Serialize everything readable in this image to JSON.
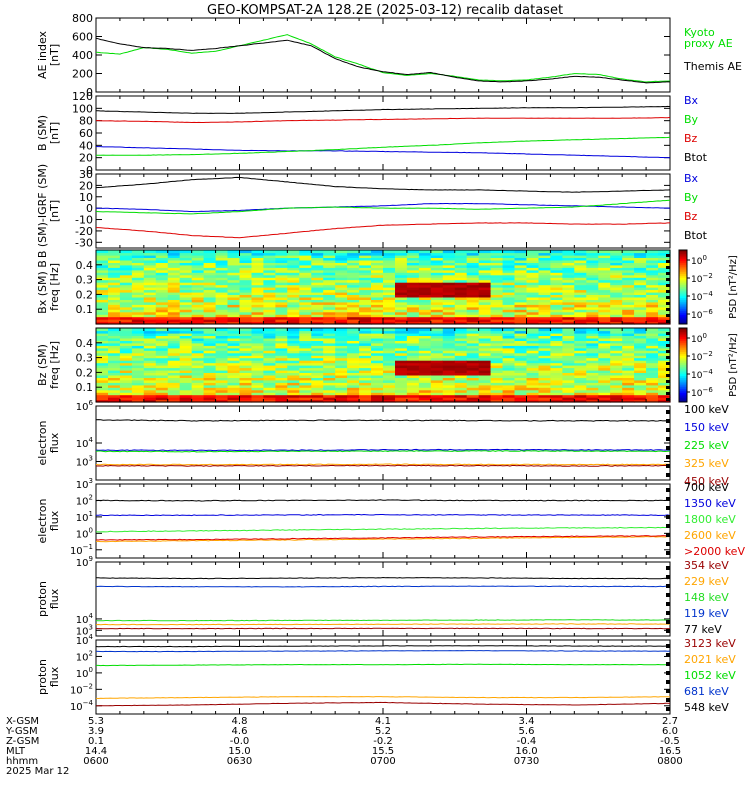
{
  "title": "GEO-KOMPSAT-2A 128.2E (2025-03-12) recalib dataset",
  "colors": {
    "black": "#000000",
    "blue": "#0000dd",
    "green": "#00dd00",
    "red": "#dd0000",
    "orange": "#ffa500",
    "darkred": "#990000",
    "brightgreen": "#33ee33",
    "limegreen": "#22dd22",
    "navy": "#0033cc"
  },
  "x_axis": {
    "time_range": [
      "0600",
      "0800"
    ],
    "ticks": [
      {
        "hhmm": "0600",
        "x_gsm": "5.3",
        "y_gsm": "3.9",
        "z_gsm": "0.1",
        "mlt": "14.4"
      },
      {
        "hhmm": "0630",
        "x_gsm": "4.8",
        "y_gsm": "4.6",
        "z_gsm": "-0.0",
        "mlt": "15.0"
      },
      {
        "hhmm": "0700",
        "x_gsm": "4.1",
        "y_gsm": "5.2",
        "z_gsm": "-0.2",
        "mlt": "15.5"
      },
      {
        "hhmm": "0730",
        "x_gsm": "3.4",
        "y_gsm": "5.6",
        "z_gsm": "-0.4",
        "mlt": "16.0"
      },
      {
        "hhmm": "0800",
        "x_gsm": "2.7",
        "y_gsm": "6.0",
        "z_gsm": "-0.5",
        "mlt": "16.5"
      }
    ],
    "row_labels": [
      "X-GSM",
      "Y-GSM",
      "Z-GSM",
      "MLT",
      "hhmm"
    ],
    "date_label": "2025 Mar 12"
  },
  "chart_data": [
    {
      "type": "line",
      "id": "ae",
      "ylabel": "AE index\n[nT]",
      "ylim": [
        0,
        800
      ],
      "yscale": "linear",
      "yticks": [
        0,
        200,
        400,
        600,
        800
      ],
      "x": [
        0,
        5,
        10,
        15,
        20,
        25,
        30,
        35,
        40,
        45,
        50,
        55,
        60,
        65,
        70,
        75,
        80,
        85,
        90,
        95,
        100,
        105,
        110,
        115,
        120
      ],
      "series": [
        {
          "name": "Kyoto\nproxy AE",
          "color": "green",
          "values": [
            430,
            410,
            480,
            460,
            420,
            440,
            500,
            560,
            620,
            520,
            380,
            300,
            210,
            180,
            200,
            170,
            130,
            120,
            130,
            160,
            200,
            190,
            140,
            110,
            120
          ]
        },
        {
          "name": "Themis AE",
          "color": "black",
          "values": [
            580,
            520,
            480,
            470,
            450,
            470,
            500,
            530,
            560,
            500,
            360,
            270,
            220,
            190,
            210,
            160,
            120,
            110,
            120,
            140,
            170,
            160,
            130,
            100,
            110
          ]
        }
      ]
    },
    {
      "type": "line",
      "id": "bsm",
      "ylabel": "B (SM)\n[nT]",
      "ylim": [
        0,
        120
      ],
      "yscale": "linear",
      "yticks": [
        0,
        20,
        40,
        60,
        80,
        100,
        120
      ],
      "x": [
        0,
        10,
        20,
        30,
        40,
        50,
        60,
        70,
        80,
        90,
        100,
        110,
        120
      ],
      "series": [
        {
          "name": "Bx",
          "color": "blue",
          "values": [
            38,
            36,
            34,
            32,
            31,
            31,
            30,
            29,
            28,
            26,
            24,
            22,
            20
          ]
        },
        {
          "name": "By",
          "color": "green",
          "values": [
            24,
            24,
            25,
            27,
            30,
            33,
            37,
            40,
            44,
            47,
            49,
            51,
            53
          ]
        },
        {
          "name": "Bz",
          "color": "red",
          "values": [
            80,
            79,
            77,
            78,
            80,
            81,
            82,
            83,
            84,
            84,
            84,
            84,
            85
          ]
        },
        {
          "name": "Btot",
          "color": "black",
          "values": [
            96,
            94,
            92,
            92,
            94,
            96,
            98,
            99,
            100,
            101,
            101,
            102,
            103
          ]
        }
      ]
    },
    {
      "type": "line",
      "id": "bigrf",
      "ylabel": "B (SM)-IGRF (SM)\n[nT]",
      "ylim": [
        -35,
        30
      ],
      "yscale": "linear",
      "yticks": [
        -30,
        -20,
        -10,
        0,
        10,
        20,
        30
      ],
      "x": [
        0,
        10,
        20,
        30,
        40,
        50,
        60,
        70,
        80,
        90,
        100,
        110,
        120
      ],
      "series": [
        {
          "name": "Bx",
          "color": "blue",
          "values": [
            0,
            -1,
            -3,
            -2,
            0,
            1,
            2,
            4,
            4,
            3,
            2,
            1,
            0
          ]
        },
        {
          "name": "By",
          "color": "green",
          "values": [
            -3,
            -4,
            -5,
            -3,
            0,
            1,
            0,
            0,
            -1,
            0,
            1,
            4,
            7
          ]
        },
        {
          "name": "Bz",
          "color": "red",
          "values": [
            -17,
            -20,
            -24,
            -26,
            -22,
            -18,
            -15,
            -14,
            -13,
            -13,
            -14,
            -14,
            -13
          ]
        },
        {
          "name": "Btot",
          "color": "black",
          "values": [
            18,
            21,
            25,
            27,
            23,
            19,
            17,
            16,
            16,
            15,
            14,
            15,
            16
          ]
        }
      ]
    },
    {
      "type": "heatmap",
      "id": "bx_spec",
      "ylabel": "Bx (SM) B\nfreq [Hz]",
      "ylim": [
        0,
        0.5
      ],
      "yticks": [
        0.1,
        0.2,
        0.3,
        0.4
      ],
      "colorbar_label": "PSD [nT²/Hz]",
      "colorbar_ticks": [
        {
          "b": "10",
          "e": "0"
        },
        {
          "b": "10",
          "e": "−2"
        },
        {
          "b": "10",
          "e": "−4"
        },
        {
          "b": "10",
          "e": "−6"
        }
      ]
    },
    {
      "type": "heatmap",
      "id": "bz_spec",
      "ylabel": "Bz (SM)\nfreq [Hz]",
      "ylim": [
        0,
        0.5
      ],
      "yticks": [
        0.1,
        0.2,
        0.3,
        0.4
      ],
      "colorbar_label": "PSD [nT²/Hz]",
      "colorbar_ticks": [
        {
          "b": "10",
          "e": "0"
        },
        {
          "b": "10",
          "e": "−2"
        },
        {
          "b": "10",
          "e": "−4"
        },
        {
          "b": "10",
          "e": "−6"
        }
      ]
    },
    {
      "type": "line",
      "id": "eflux_low",
      "ylabel": "electron\nflux",
      "yscale": "log",
      "ylim_log": [
        2,
        6
      ],
      "yticks": [
        {
          "b": "10",
          "e": "6"
        },
        {
          "b": "10",
          "e": "4"
        },
        {
          "b": "10",
          "e": "3"
        }
      ],
      "x": [
        0,
        20,
        40,
        60,
        80,
        100,
        120
      ],
      "series": [
        {
          "name": "100 keV",
          "color": "black",
          "values": [
            5.25,
            5.2,
            5.22,
            5.23,
            5.21,
            5.2,
            5.2
          ]
        },
        {
          "name": "150 keV",
          "color": "blue",
          "values": [
            3.62,
            3.6,
            3.61,
            3.63,
            3.64,
            3.63,
            3.62
          ]
        },
        {
          "name": "225 keV",
          "color": "green",
          "values": [
            3.55,
            3.53,
            3.55,
            3.56,
            3.57,
            3.56,
            3.55
          ]
        },
        {
          "name": "325 keV",
          "color": "orange",
          "values": [
            2.84,
            2.83,
            2.84,
            2.85,
            2.84,
            2.83,
            2.84
          ]
        },
        {
          "name": "450 keV",
          "color": "darkred",
          "values": [
            2.77,
            2.76,
            2.77,
            2.78,
            2.77,
            2.76,
            2.77
          ]
        }
      ]
    },
    {
      "type": "line",
      "id": "eflux_high",
      "ylabel": "electron\nflux",
      "yscale": "log",
      "ylim_log": [
        -1.5,
        3
      ],
      "yticks": [
        {
          "b": "10",
          "e": "3"
        },
        {
          "b": "10",
          "e": "2"
        },
        {
          "b": "10",
          "e": "1"
        },
        {
          "b": "10",
          "e": "0"
        },
        {
          "b": "10",
          "e": "−1"
        }
      ],
      "x": [
        0,
        20,
        40,
        60,
        80,
        100,
        120
      ],
      "series": [
        {
          "name": "700 keV",
          "color": "black",
          "values": [
            2.0,
            1.98,
            2.0,
            2.02,
            2.0,
            1.99,
            2.0
          ]
        },
        {
          "name": "1350 keV",
          "color": "blue",
          "values": [
            1.1,
            1.1,
            1.12,
            1.13,
            1.12,
            1.11,
            1.1
          ]
        },
        {
          "name": "1800 keV",
          "color": "brightgreen",
          "values": [
            0.1,
            0.15,
            0.2,
            0.25,
            0.3,
            0.33,
            0.35
          ]
        },
        {
          "name": "2600 keV",
          "color": "orange",
          "values": [
            -0.5,
            -0.45,
            -0.4,
            -0.35,
            -0.3,
            -0.25,
            -0.2
          ]
        },
        {
          "name": ">2000 keV",
          "color": "red",
          "values": [
            -0.4,
            -0.38,
            -0.33,
            -0.28,
            -0.22,
            -0.18,
            -0.15
          ]
        }
      ]
    },
    {
      "type": "line",
      "id": "pflux_low",
      "ylabel": "proton\nflux",
      "yscale": "log",
      "ylim_log": [
        2.5,
        9
      ],
      "yticks": [
        {
          "b": "10",
          "e": "9"
        },
        {
          "b": "10",
          "e": "4"
        },
        {
          "b": "10",
          "e": "3"
        }
      ],
      "x": [
        0,
        20,
        40,
        60,
        80,
        100,
        120
      ],
      "series": [
        {
          "name": "354 keV",
          "color": "darkred",
          "values": [
            3.15,
            3.15,
            3.16,
            3.17,
            3.17,
            3.16,
            3.15
          ]
        },
        {
          "name": "229 keV",
          "color": "orange",
          "values": [
            3.5,
            3.5,
            3.52,
            3.53,
            3.55,
            3.56,
            3.55
          ]
        },
        {
          "name": "148 keV",
          "color": "limegreen",
          "values": [
            3.85,
            3.85,
            3.87,
            3.88,
            3.9,
            3.92,
            3.9
          ]
        },
        {
          "name": "119 keV",
          "color": "navy",
          "values": [
            6.85,
            6.83,
            6.82,
            6.85,
            6.88,
            6.86,
            6.85
          ]
        },
        {
          "name": "77 keV",
          "color": "black",
          "values": [
            7.6,
            7.55,
            7.58,
            7.62,
            7.6,
            7.55,
            7.55
          ]
        }
      ]
    },
    {
      "type": "line",
      "id": "pflux_high",
      "ylabel": "proton\nflux",
      "yscale": "log",
      "ylim_log": [
        -5,
        4
      ],
      "yticks": [
        {
          "b": "10",
          "e": "4"
        },
        {
          "b": "10",
          "e": "2"
        },
        {
          "b": "10",
          "e": "0"
        },
        {
          "b": "10",
          "e": "−2"
        },
        {
          "b": "10",
          "e": "−4"
        }
      ],
      "x": [
        0,
        20,
        40,
        60,
        80,
        100,
        120
      ],
      "series": [
        {
          "name": "3123 keV",
          "color": "darkred",
          "values": [
            -4,
            -3.9,
            -3.7,
            -3.6,
            -3.8,
            -3.9,
            -3.7
          ]
        },
        {
          "name": "2021 keV",
          "color": "orange",
          "values": [
            -3.1,
            -3.0,
            -2.9,
            -2.9,
            -3.0,
            -3.0,
            -2.9
          ]
        },
        {
          "name": "1052 keV",
          "color": "green",
          "values": [
            0.9,
            0.95,
            1.0,
            1.0,
            1.05,
            1.0,
            1.0
          ]
        },
        {
          "name": "681 keV",
          "color": "navy",
          "values": [
            2.6,
            2.6,
            2.65,
            2.68,
            2.7,
            2.66,
            2.65
          ]
        },
        {
          "name": "548 keV",
          "color": "black",
          "values": [
            3.2,
            3.2,
            3.25,
            3.28,
            3.3,
            3.27,
            3.25
          ]
        }
      ]
    }
  ]
}
